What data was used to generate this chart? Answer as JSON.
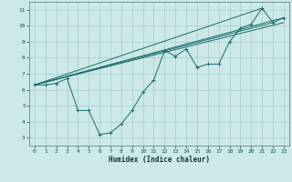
{
  "title": "",
  "xlabel": "Humidex (Indice chaleur)",
  "xlim": [
    -0.5,
    23.5
  ],
  "ylim": [
    2.5,
    11.5
  ],
  "xticks": [
    0,
    1,
    2,
    3,
    4,
    5,
    6,
    7,
    8,
    9,
    10,
    11,
    12,
    13,
    14,
    15,
    16,
    17,
    18,
    19,
    20,
    21,
    22,
    23
  ],
  "yticks": [
    3,
    4,
    5,
    6,
    7,
    8,
    9,
    10,
    11
  ],
  "bg_color": "#cce8e8",
  "line_color": "#1a6b6b",
  "grid_color": "#aacccc",
  "line1_x": [
    0,
    1,
    2,
    3,
    4,
    5,
    6,
    7,
    8,
    9,
    10,
    11,
    12,
    13,
    14,
    15,
    16,
    17,
    18,
    19,
    20,
    21,
    22,
    23
  ],
  "line1_y": [
    6.3,
    6.3,
    6.4,
    6.7,
    4.7,
    4.7,
    3.2,
    3.3,
    3.85,
    4.7,
    5.85,
    6.6,
    8.45,
    8.1,
    8.55,
    7.4,
    7.6,
    7.6,
    9.0,
    9.85,
    10.1,
    11.1,
    10.2,
    10.5
  ],
  "line2_x": [
    0,
    23
  ],
  "line2_y": [
    6.3,
    10.5
  ],
  "line3_x": [
    0,
    23
  ],
  "line3_y": [
    6.3,
    10.2
  ],
  "line4_x": [
    0,
    21
  ],
  "line4_y": [
    6.3,
    11.1
  ],
  "line5_x": [
    0,
    22
  ],
  "line5_y": [
    6.3,
    10.2
  ]
}
